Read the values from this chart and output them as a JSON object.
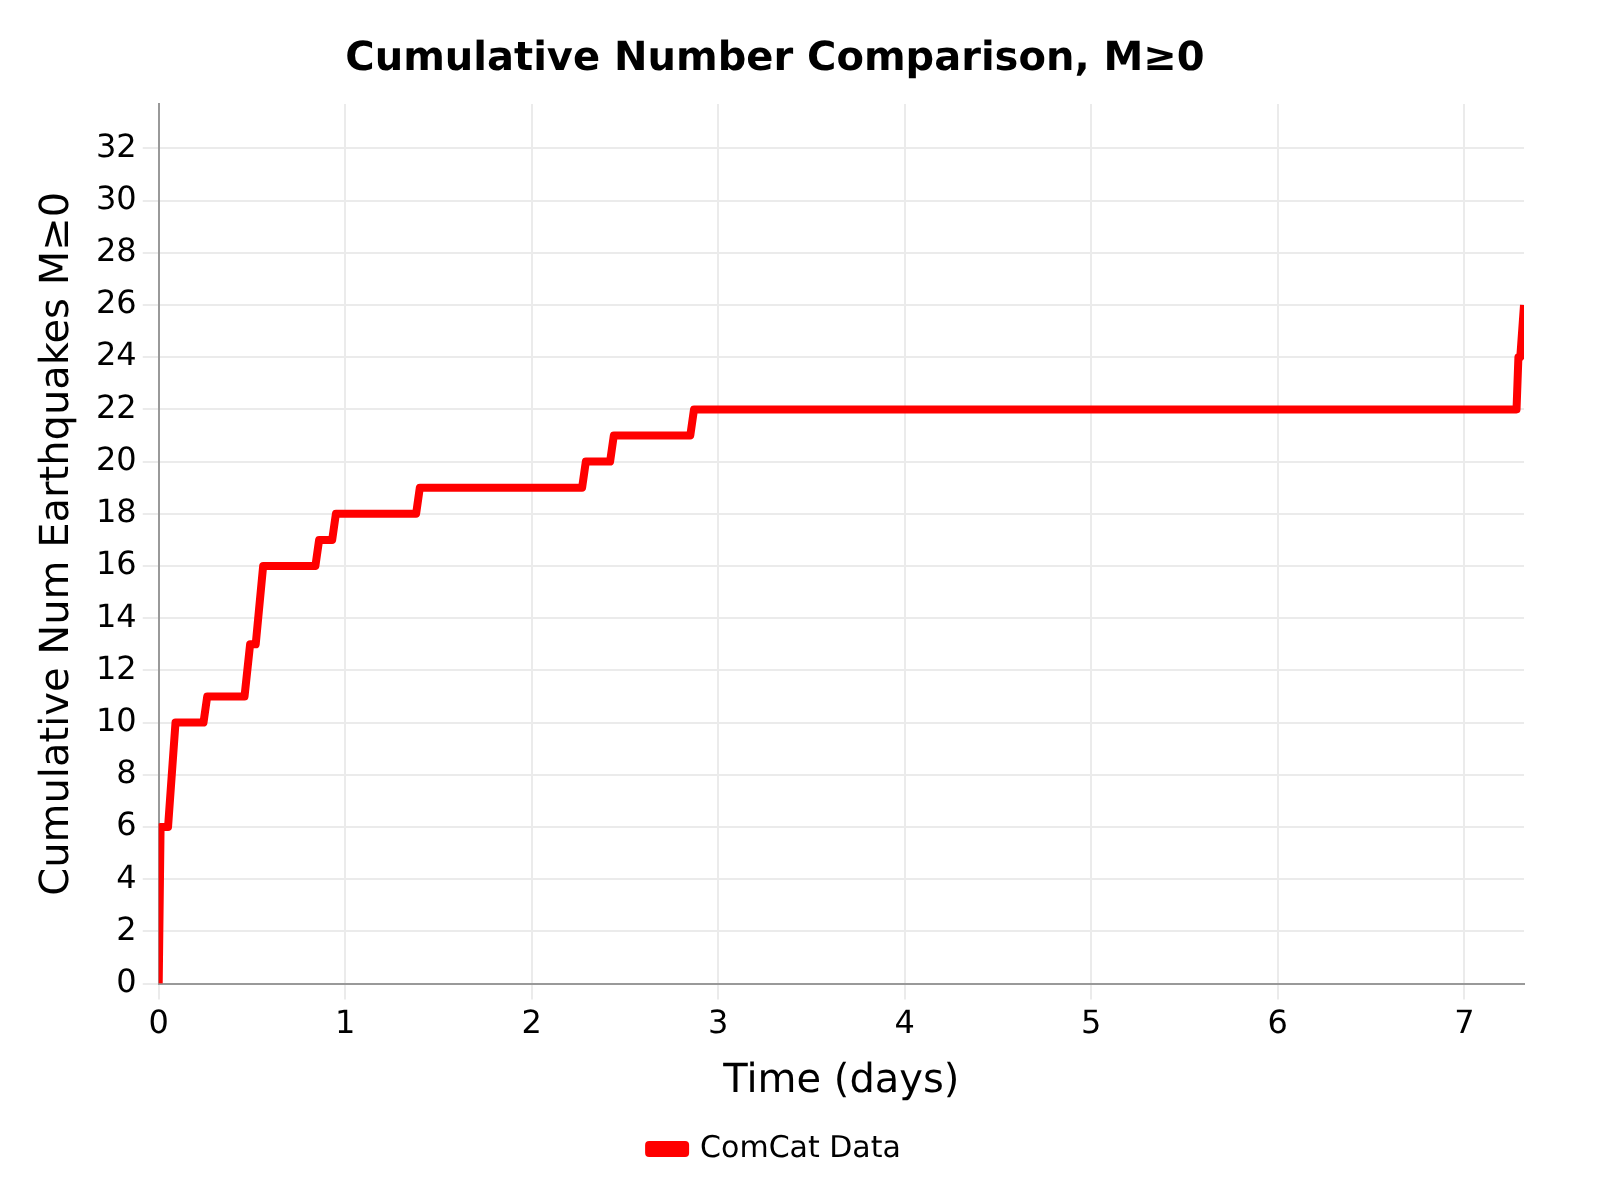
{
  "chart_data": {
    "type": "line",
    "title": "Cumulative Number Comparison, M≥0",
    "xlabel": "Time (days)",
    "ylabel": "Cumulative Num Earthquakes M≥0",
    "series": [
      {
        "name": "ComCat Data",
        "color": "#ff0000",
        "x": [
          0,
          0.01,
          0.05,
          0.09,
          0.24,
          0.26,
          0.46,
          0.49,
          0.52,
          0.56,
          0.84,
          0.86,
          0.93,
          0.95,
          1.38,
          1.4,
          2.27,
          2.29,
          2.42,
          2.44,
          2.85,
          2.87,
          7.28,
          7.29,
          7.3,
          7.32
        ],
        "values": [
          0,
          6,
          6,
          10,
          10,
          11,
          11,
          13,
          13,
          16,
          16,
          17,
          17,
          18,
          18,
          19,
          19,
          20,
          20,
          21,
          21,
          22,
          22,
          24,
          24,
          26
        ]
      }
    ],
    "xlim": [
      0,
      7.32
    ],
    "xticks": [
      0,
      1,
      2,
      3,
      4,
      5,
      6,
      7
    ],
    "ylim": [
      0,
      33.7
    ],
    "yticks": [
      0,
      2,
      4,
      6,
      8,
      10,
      12,
      14,
      16,
      18,
      20,
      22,
      24,
      26,
      28,
      30,
      32
    ],
    "grid": true,
    "legend": "bottom",
    "marker": "none",
    "line_style": "solid"
  }
}
